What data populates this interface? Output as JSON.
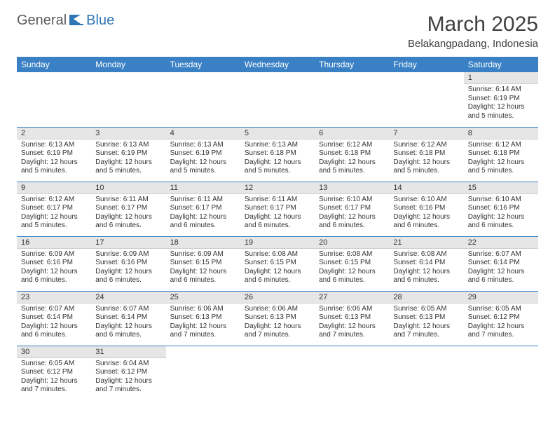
{
  "logo": {
    "text1": "General",
    "text2": "Blue"
  },
  "title": "March 2025",
  "subtitle": "Belakangpadang, Indonesia",
  "colors": {
    "header_bg": "#3a80c4",
    "header_text": "#ffffff",
    "daynum_bg": "#e6e6e6",
    "border": "#3a80c4",
    "title_color": "#404040",
    "body_text": "#333333",
    "logo_gray": "#5a5a5a",
    "logo_blue": "#2e75b6"
  },
  "weekdays": [
    "Sunday",
    "Monday",
    "Tuesday",
    "Wednesday",
    "Thursday",
    "Friday",
    "Saturday"
  ],
  "weeks": [
    [
      null,
      null,
      null,
      null,
      null,
      null,
      {
        "d": "1",
        "sr": "Sunrise: 6:14 AM",
        "ss": "Sunset: 6:19 PM",
        "dl": "Daylight: 12 hours and 5 minutes."
      }
    ],
    [
      {
        "d": "2",
        "sr": "Sunrise: 6:13 AM",
        "ss": "Sunset: 6:19 PM",
        "dl": "Daylight: 12 hours and 5 minutes."
      },
      {
        "d": "3",
        "sr": "Sunrise: 6:13 AM",
        "ss": "Sunset: 6:19 PM",
        "dl": "Daylight: 12 hours and 5 minutes."
      },
      {
        "d": "4",
        "sr": "Sunrise: 6:13 AM",
        "ss": "Sunset: 6:19 PM",
        "dl": "Daylight: 12 hours and 5 minutes."
      },
      {
        "d": "5",
        "sr": "Sunrise: 6:13 AM",
        "ss": "Sunset: 6:18 PM",
        "dl": "Daylight: 12 hours and 5 minutes."
      },
      {
        "d": "6",
        "sr": "Sunrise: 6:12 AM",
        "ss": "Sunset: 6:18 PM",
        "dl": "Daylight: 12 hours and 5 minutes."
      },
      {
        "d": "7",
        "sr": "Sunrise: 6:12 AM",
        "ss": "Sunset: 6:18 PM",
        "dl": "Daylight: 12 hours and 5 minutes."
      },
      {
        "d": "8",
        "sr": "Sunrise: 6:12 AM",
        "ss": "Sunset: 6:18 PM",
        "dl": "Daylight: 12 hours and 5 minutes."
      }
    ],
    [
      {
        "d": "9",
        "sr": "Sunrise: 6:12 AM",
        "ss": "Sunset: 6:17 PM",
        "dl": "Daylight: 12 hours and 5 minutes."
      },
      {
        "d": "10",
        "sr": "Sunrise: 6:11 AM",
        "ss": "Sunset: 6:17 PM",
        "dl": "Daylight: 12 hours and 6 minutes."
      },
      {
        "d": "11",
        "sr": "Sunrise: 6:11 AM",
        "ss": "Sunset: 6:17 PM",
        "dl": "Daylight: 12 hours and 6 minutes."
      },
      {
        "d": "12",
        "sr": "Sunrise: 6:11 AM",
        "ss": "Sunset: 6:17 PM",
        "dl": "Daylight: 12 hours and 6 minutes."
      },
      {
        "d": "13",
        "sr": "Sunrise: 6:10 AM",
        "ss": "Sunset: 6:17 PM",
        "dl": "Daylight: 12 hours and 6 minutes."
      },
      {
        "d": "14",
        "sr": "Sunrise: 6:10 AM",
        "ss": "Sunset: 6:16 PM",
        "dl": "Daylight: 12 hours and 6 minutes."
      },
      {
        "d": "15",
        "sr": "Sunrise: 6:10 AM",
        "ss": "Sunset: 6:16 PM",
        "dl": "Daylight: 12 hours and 6 minutes."
      }
    ],
    [
      {
        "d": "16",
        "sr": "Sunrise: 6:09 AM",
        "ss": "Sunset: 6:16 PM",
        "dl": "Daylight: 12 hours and 6 minutes."
      },
      {
        "d": "17",
        "sr": "Sunrise: 6:09 AM",
        "ss": "Sunset: 6:16 PM",
        "dl": "Daylight: 12 hours and 6 minutes."
      },
      {
        "d": "18",
        "sr": "Sunrise: 6:09 AM",
        "ss": "Sunset: 6:15 PM",
        "dl": "Daylight: 12 hours and 6 minutes."
      },
      {
        "d": "19",
        "sr": "Sunrise: 6:08 AM",
        "ss": "Sunset: 6:15 PM",
        "dl": "Daylight: 12 hours and 6 minutes."
      },
      {
        "d": "20",
        "sr": "Sunrise: 6:08 AM",
        "ss": "Sunset: 6:15 PM",
        "dl": "Daylight: 12 hours and 6 minutes."
      },
      {
        "d": "21",
        "sr": "Sunrise: 6:08 AM",
        "ss": "Sunset: 6:14 PM",
        "dl": "Daylight: 12 hours and 6 minutes."
      },
      {
        "d": "22",
        "sr": "Sunrise: 6:07 AM",
        "ss": "Sunset: 6:14 PM",
        "dl": "Daylight: 12 hours and 6 minutes."
      }
    ],
    [
      {
        "d": "23",
        "sr": "Sunrise: 6:07 AM",
        "ss": "Sunset: 6:14 PM",
        "dl": "Daylight: 12 hours and 6 minutes."
      },
      {
        "d": "24",
        "sr": "Sunrise: 6:07 AM",
        "ss": "Sunset: 6:14 PM",
        "dl": "Daylight: 12 hours and 6 minutes."
      },
      {
        "d": "25",
        "sr": "Sunrise: 6:06 AM",
        "ss": "Sunset: 6:13 PM",
        "dl": "Daylight: 12 hours and 7 minutes."
      },
      {
        "d": "26",
        "sr": "Sunrise: 6:06 AM",
        "ss": "Sunset: 6:13 PM",
        "dl": "Daylight: 12 hours and 7 minutes."
      },
      {
        "d": "27",
        "sr": "Sunrise: 6:06 AM",
        "ss": "Sunset: 6:13 PM",
        "dl": "Daylight: 12 hours and 7 minutes."
      },
      {
        "d": "28",
        "sr": "Sunrise: 6:05 AM",
        "ss": "Sunset: 6:13 PM",
        "dl": "Daylight: 12 hours and 7 minutes."
      },
      {
        "d": "29",
        "sr": "Sunrise: 6:05 AM",
        "ss": "Sunset: 6:12 PM",
        "dl": "Daylight: 12 hours and 7 minutes."
      }
    ],
    [
      {
        "d": "30",
        "sr": "Sunrise: 6:05 AM",
        "ss": "Sunset: 6:12 PM",
        "dl": "Daylight: 12 hours and 7 minutes."
      },
      {
        "d": "31",
        "sr": "Sunrise: 6:04 AM",
        "ss": "Sunset: 6:12 PM",
        "dl": "Daylight: 12 hours and 7 minutes."
      },
      null,
      null,
      null,
      null,
      null
    ]
  ]
}
